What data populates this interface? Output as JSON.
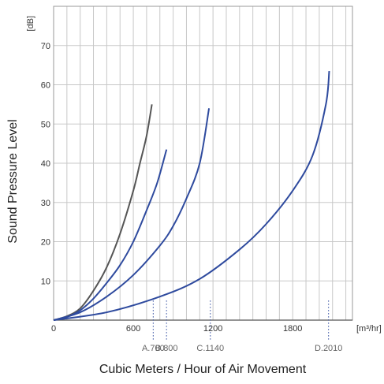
{
  "chart_data": {
    "type": "line",
    "xlabel": "Cubic Meters / Hour of Air Movement",
    "ylabel": "Sound Pressure Level",
    "x_unit": "[m³/hr]",
    "y_unit": "[dB]",
    "xlim": [
      0,
      2250
    ],
    "ylim": [
      0,
      80
    ],
    "grid": true,
    "x_ticks": [
      0,
      600,
      1200,
      1800
    ],
    "y_ticks": [
      10,
      20,
      30,
      40,
      50,
      60,
      70
    ],
    "markers": [
      {
        "label": "A.700",
        "x": 750
      },
      {
        "label": "B.800",
        "x": 850
      },
      {
        "label": "C.1140",
        "x": 1180
      },
      {
        "label": "D.2010",
        "x": 2070
      }
    ],
    "series": [
      {
        "color": "#555555",
        "x": [
          0,
          100,
          200,
          300,
          400,
          500,
          600,
          650,
          700,
          740
        ],
        "y": [
          0,
          1,
          3,
          7.5,
          13.5,
          22,
          33,
          40,
          47,
          55
        ]
      },
      {
        "color": "#2e4a9e",
        "x": [
          0,
          100,
          200,
          300,
          400,
          500,
          600,
          700,
          780,
          850
        ],
        "y": [
          0,
          0.8,
          2.5,
          5.5,
          9.5,
          14,
          20,
          28,
          35,
          43.5
        ]
      },
      {
        "color": "#2e4a9e",
        "x": [
          0,
          200,
          400,
          600,
          800,
          900,
          1000,
          1100,
          1170
        ],
        "y": [
          0,
          2,
          6,
          11.5,
          19,
          24,
          31,
          40,
          54
        ]
      },
      {
        "color": "#2e4a9e",
        "x": [
          0,
          400,
          800,
          1100,
          1400,
          1600,
          1800,
          1950,
          2050,
          2075
        ],
        "y": [
          0,
          2,
          6,
          10.5,
          18,
          24.5,
          33,
          42,
          55,
          63.5
        ]
      }
    ]
  }
}
